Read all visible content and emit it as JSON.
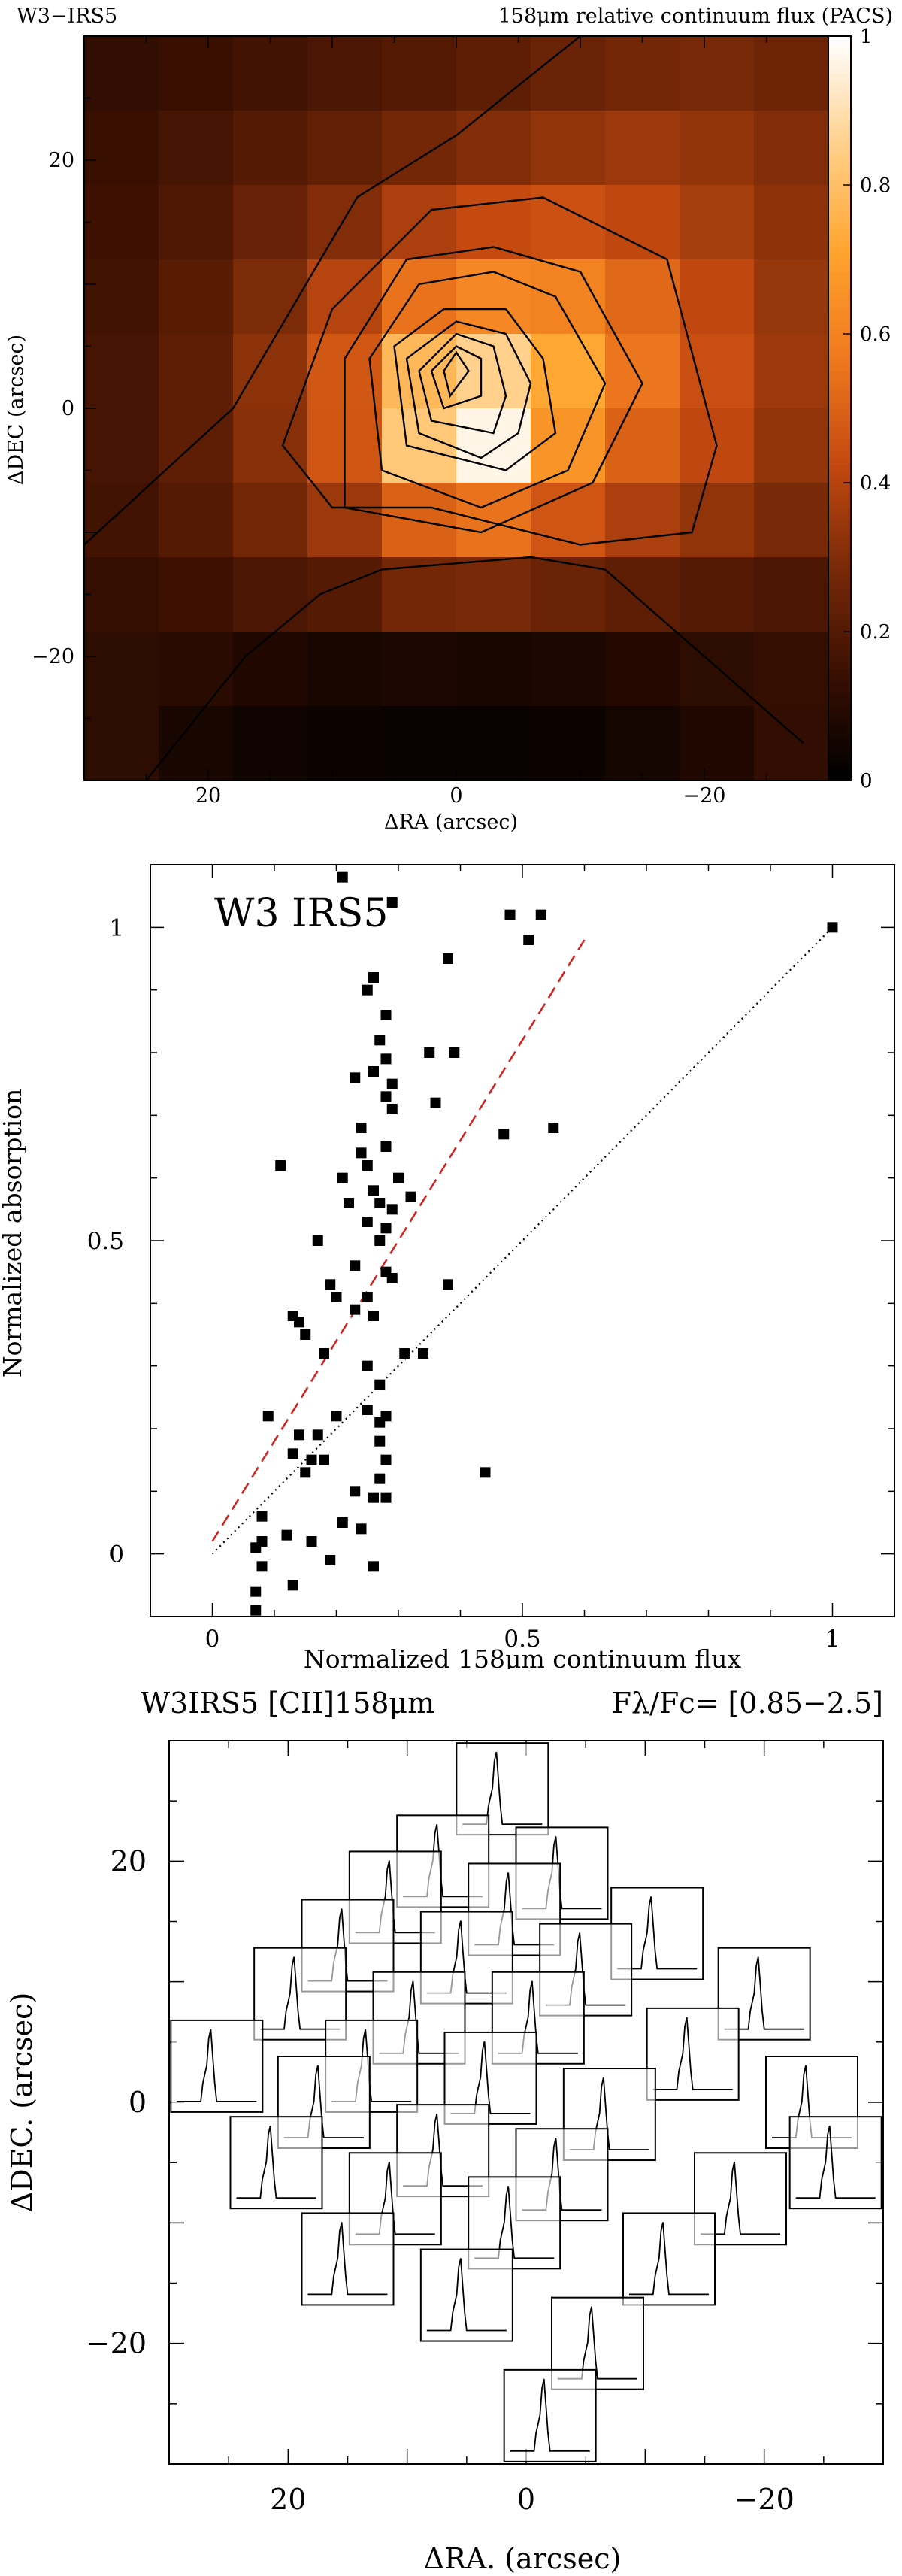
{
  "chart_data": [
    {
      "type": "heatmap",
      "source_label": "W3−IRS5",
      "title": "158μm relative continuum flux (PACS)",
      "xlabel": "ΔRA (arcsec)",
      "ylabel": "ΔDEC (arcsec)",
      "xlim": [
        30,
        -30
      ],
      "ylim": [
        -30,
        30
      ],
      "x_ticks": [
        "20",
        "0",
        "−20"
      ],
      "y_ticks": [
        "20",
        "0",
        "−20"
      ],
      "colorbar": {
        "range": [
          0,
          1
        ],
        "ticks": [
          "0",
          "0.2",
          "0.4",
          "0.6",
          "0.8",
          "1"
        ],
        "colors": [
          "#000000",
          "#3a0f02",
          "#7a2a08",
          "#c44a10",
          "#f07a1e",
          "#ffa42f",
          "#ffd08a",
          "#ffffff"
        ]
      },
      "grid_x_centers": [
        27,
        21,
        15,
        9,
        3,
        -3,
        -9,
        -15,
        -21,
        -27
      ],
      "grid_y_centers": [
        27,
        21,
        15,
        9,
        3,
        -3,
        -9,
        -15,
        -21,
        -27
      ],
      "values": [
        [
          0.12,
          0.14,
          0.16,
          0.18,
          0.2,
          0.22,
          0.25,
          0.27,
          0.28,
          0.26
        ],
        [
          0.14,
          0.17,
          0.2,
          0.23,
          0.27,
          0.3,
          0.33,
          0.35,
          0.33,
          0.3
        ],
        [
          0.15,
          0.19,
          0.24,
          0.3,
          0.38,
          0.43,
          0.45,
          0.42,
          0.37,
          0.32
        ],
        [
          0.16,
          0.21,
          0.29,
          0.4,
          0.55,
          0.62,
          0.6,
          0.52,
          0.42,
          0.34
        ],
        [
          0.17,
          0.22,
          0.32,
          0.47,
          0.78,
          0.86,
          0.72,
          0.56,
          0.44,
          0.35
        ],
        [
          0.17,
          0.22,
          0.31,
          0.46,
          0.83,
          0.97,
          0.66,
          0.5,
          0.42,
          0.33
        ],
        [
          0.16,
          0.2,
          0.27,
          0.35,
          0.5,
          0.55,
          0.46,
          0.38,
          0.33,
          0.28
        ],
        [
          0.13,
          0.15,
          0.18,
          0.2,
          0.27,
          0.28,
          0.25,
          0.22,
          0.2,
          0.18
        ],
        [
          0.11,
          0.1,
          0.08,
          0.06,
          0.07,
          0.06,
          0.07,
          0.09,
          0.11,
          0.13
        ],
        [
          0.11,
          0.06,
          0.04,
          0.03,
          0.02,
          0.02,
          0.03,
          0.05,
          0.08,
          0.12
        ]
      ]
    },
    {
      "type": "scatter",
      "annotation": "W3 IRS5",
      "xlabel": "Normalized 158μm continuum flux",
      "ylabel": "Normalized absorption",
      "xlim": [
        -0.1,
        1.1
      ],
      "ylim": [
        -0.1,
        1.1
      ],
      "x_ticks": [
        "0",
        "0.5",
        "1"
      ],
      "y_ticks": [
        "0",
        "0.5",
        "1"
      ],
      "grid": false,
      "points": [
        [
          0.21,
          1.08
        ],
        [
          0.29,
          1.04
        ],
        [
          0.48,
          1.02
        ],
        [
          0.53,
          1.02
        ],
        [
          0.51,
          0.98
        ],
        [
          1.0,
          1.0
        ],
        [
          0.38,
          0.95
        ],
        [
          0.26,
          0.92
        ],
        [
          0.25,
          0.9
        ],
        [
          0.28,
          0.86
        ],
        [
          0.27,
          0.82
        ],
        [
          0.35,
          0.8
        ],
        [
          0.39,
          0.8
        ],
        [
          0.28,
          0.79
        ],
        [
          0.26,
          0.77
        ],
        [
          0.23,
          0.76
        ],
        [
          0.29,
          0.75
        ],
        [
          0.28,
          0.73
        ],
        [
          0.36,
          0.72
        ],
        [
          0.29,
          0.71
        ],
        [
          0.24,
          0.68
        ],
        [
          0.47,
          0.67
        ],
        [
          0.55,
          0.68
        ],
        [
          0.28,
          0.65
        ],
        [
          0.24,
          0.64
        ],
        [
          0.11,
          0.62
        ],
        [
          0.25,
          0.62
        ],
        [
          0.21,
          0.6
        ],
        [
          0.3,
          0.6
        ],
        [
          0.26,
          0.58
        ],
        [
          0.27,
          0.56
        ],
        [
          0.32,
          0.57
        ],
        [
          0.22,
          0.56
        ],
        [
          0.29,
          0.55
        ],
        [
          0.25,
          0.53
        ],
        [
          0.28,
          0.52
        ],
        [
          0.17,
          0.5
        ],
        [
          0.27,
          0.5
        ],
        [
          0.23,
          0.46
        ],
        [
          0.28,
          0.45
        ],
        [
          0.19,
          0.43
        ],
        [
          0.29,
          0.44
        ],
        [
          0.38,
          0.43
        ],
        [
          0.2,
          0.41
        ],
        [
          0.25,
          0.41
        ],
        [
          0.23,
          0.39
        ],
        [
          0.13,
          0.38
        ],
        [
          0.14,
          0.37
        ],
        [
          0.26,
          0.38
        ],
        [
          0.15,
          0.35
        ],
        [
          0.31,
          0.32
        ],
        [
          0.18,
          0.32
        ],
        [
          0.34,
          0.32
        ],
        [
          0.25,
          0.3
        ],
        [
          0.27,
          0.27
        ],
        [
          0.25,
          0.23
        ],
        [
          0.27,
          0.21
        ],
        [
          0.09,
          0.22
        ],
        [
          0.2,
          0.22
        ],
        [
          0.28,
          0.22
        ],
        [
          0.14,
          0.19
        ],
        [
          0.17,
          0.19
        ],
        [
          0.27,
          0.18
        ],
        [
          0.13,
          0.16
        ],
        [
          0.16,
          0.15
        ],
        [
          0.18,
          0.15
        ],
        [
          0.28,
          0.15
        ],
        [
          0.44,
          0.13
        ],
        [
          0.15,
          0.13
        ],
        [
          0.27,
          0.12
        ],
        [
          0.23,
          0.1
        ],
        [
          0.26,
          0.09
        ],
        [
          0.28,
          0.09
        ],
        [
          0.08,
          0.06
        ],
        [
          0.21,
          0.05
        ],
        [
          0.24,
          0.04
        ],
        [
          0.12,
          0.03
        ],
        [
          0.08,
          0.02
        ],
        [
          0.16,
          0.02
        ],
        [
          0.07,
          0.01
        ],
        [
          0.19,
          -0.01
        ],
        [
          0.26,
          -0.02
        ],
        [
          0.08,
          -0.02
        ],
        [
          0.07,
          -0.06
        ],
        [
          0.13,
          -0.05
        ],
        [
          0.07,
          -0.09
        ]
      ],
      "series": [
        {
          "values": [
            [
              0.0,
              0.02
            ],
            [
              0.6,
              0.98
            ]
          ],
          "color": "#d62020",
          "style": "dashed"
        },
        {
          "values": [
            [
              0.0,
              0.0
            ],
            [
              1.0,
              1.0
            ]
          ],
          "color": "#000000",
          "style": "dotted"
        }
      ]
    },
    {
      "type": "line",
      "title": "W3IRS5   [CII]158μm",
      "scale_label": "Fλ/Fc=  [0.85−2.5]",
      "xlabel": "ΔRA. (arcsec)",
      "ylabel": "ΔDEC. (arcsec)",
      "xlim": [
        30,
        -30
      ],
      "ylim": [
        -30,
        30
      ],
      "x_ticks": [
        "20",
        "0",
        "−20"
      ],
      "y_ticks": [
        "20",
        "0",
        "−20"
      ],
      "spectra_positions": [
        [
          2,
          26
        ],
        [
          7,
          20
        ],
        [
          -3,
          19
        ],
        [
          11,
          17
        ],
        [
          1,
          16
        ],
        [
          -11,
          14
        ],
        [
          15,
          13
        ],
        [
          5,
          12
        ],
        [
          -5,
          11
        ],
        [
          -20,
          9
        ],
        [
          19,
          9
        ],
        [
          9,
          7
        ],
        [
          -1,
          7
        ],
        [
          -14,
          4
        ],
        [
          26,
          3
        ],
        [
          13,
          3
        ],
        [
          3,
          2
        ],
        [
          -24,
          0
        ],
        [
          17,
          0
        ],
        [
          -7,
          -1
        ],
        [
          -26,
          -5
        ],
        [
          21,
          -5
        ],
        [
          7,
          -4
        ],
        [
          -3,
          -6
        ],
        [
          -18,
          -8
        ],
        [
          11,
          -8
        ],
        [
          1,
          -10
        ],
        [
          -12,
          -13
        ],
        [
          15,
          -13
        ],
        [
          5,
          -16
        ],
        [
          -6,
          -20
        ],
        [
          -2,
          -26
        ]
      ]
    }
  ]
}
